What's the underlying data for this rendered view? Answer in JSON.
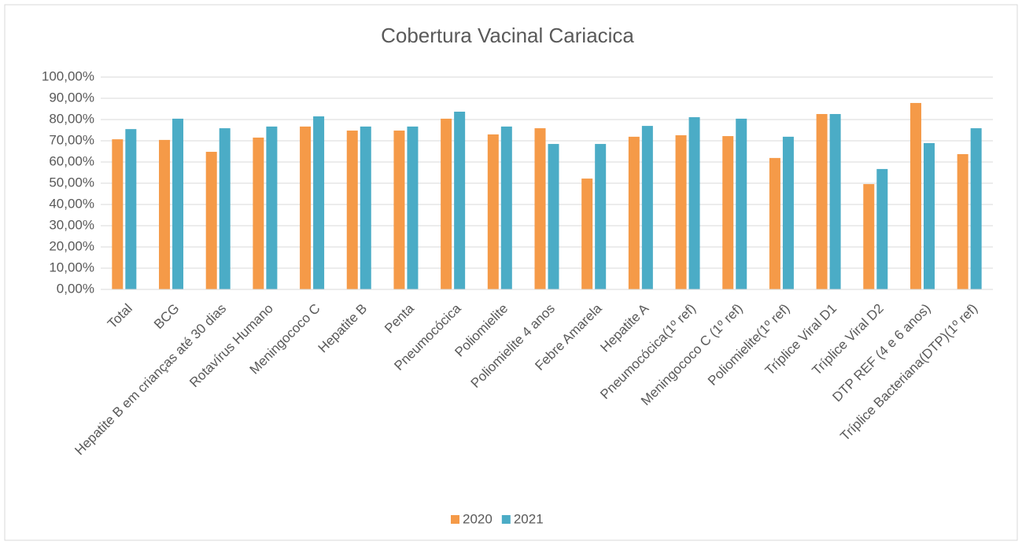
{
  "chart_data": {
    "type": "bar",
    "title": "Cobertura Vacinal Cariacica",
    "categories": [
      "Total",
      "BCG",
      "Hepatite B  em crianças até 30 dias",
      "Rotavírus Humano",
      "Meningococo C",
      "Hepatite B",
      "Penta",
      "Pneumocócica",
      "Poliomielite",
      "Poliomielite 4 anos",
      "Febre Amarela",
      "Hepatite A",
      "Pneumocócica(1º ref)",
      "Meningococo C (1º ref)",
      "Poliomielite(1º ref)",
      "Tríplice Viral  D1",
      "Tríplice Viral  D2",
      "DTP REF (4 e 6 anos)",
      "Tríplice Bacteriana(DTP)(1º ref)"
    ],
    "series": [
      {
        "name": "2020",
        "color": "#f59a48",
        "values": [
          70.7,
          70.4,
          64.8,
          71.5,
          76.7,
          74.8,
          74.8,
          80.4,
          73.0,
          75.9,
          52.2,
          71.9,
          72.6,
          72.2,
          61.9,
          82.6,
          49.6,
          87.8,
          63.7
        ]
      },
      {
        "name": "2021",
        "color": "#4bacc6",
        "values": [
          75.5,
          80.4,
          75.9,
          76.7,
          81.5,
          76.7,
          76.7,
          83.7,
          76.7,
          68.5,
          68.5,
          77.0,
          81.1,
          80.4,
          71.9,
          82.6,
          56.7,
          68.9,
          75.9
        ]
      }
    ],
    "ylim": [
      0,
      100
    ],
    "yticks": [
      {
        "value": 0,
        "label": "0,00%"
      },
      {
        "value": 10,
        "label": "10,00%"
      },
      {
        "value": 20,
        "label": "20,00%"
      },
      {
        "value": 30,
        "label": "30,00%"
      },
      {
        "value": 40,
        "label": "40,00%"
      },
      {
        "value": 50,
        "label": "50,00%"
      },
      {
        "value": 60,
        "label": "60,00%"
      },
      {
        "value": 70,
        "label": "70,00%"
      },
      {
        "value": 80,
        "label": "80,00%"
      },
      {
        "value": 90,
        "label": "90,00%"
      },
      {
        "value": 100,
        "label": "100,00%"
      }
    ],
    "grid": true,
    "legend": "bottom"
  }
}
